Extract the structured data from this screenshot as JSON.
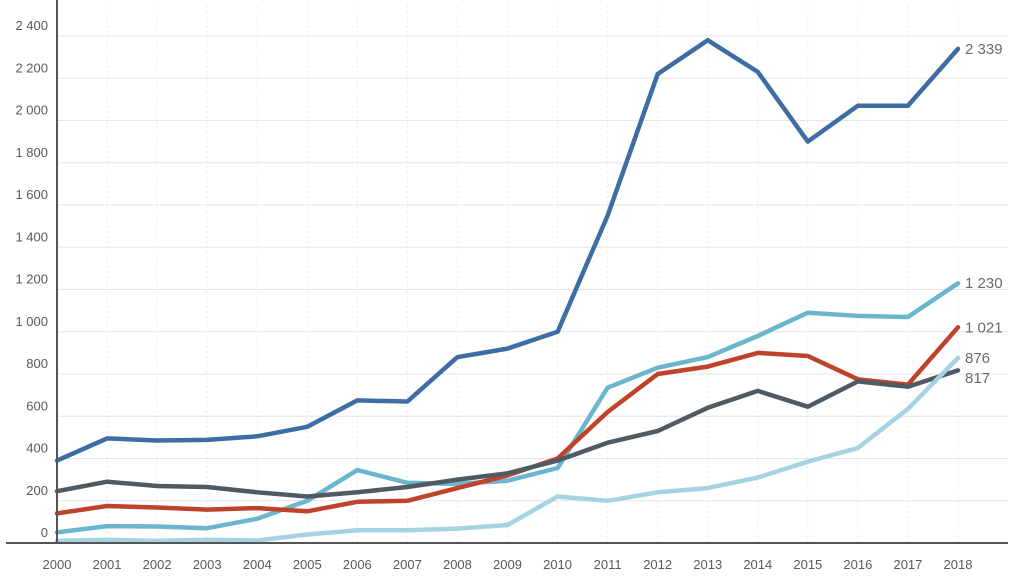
{
  "chart_data": {
    "type": "line",
    "x": [
      "2000",
      "2001",
      "2002",
      "2003",
      "2004",
      "2005",
      "2006",
      "2007",
      "2008",
      "2009",
      "2010",
      "2011",
      "2012",
      "2013",
      "2014",
      "2015",
      "2016",
      "2017",
      "2018"
    ],
    "y_ticks": [
      "0",
      "200",
      "400",
      "600",
      "800",
      "1 000",
      "1 200",
      "1 400",
      "1 600",
      "1 800",
      "2 000",
      "2 200",
      "2 400"
    ],
    "ylim": [
      0,
      2400
    ],
    "grid": true,
    "legend": "none",
    "series": [
      {
        "color": "#3d6da3",
        "values": [
          390,
          495,
          485,
          488,
          505,
          550,
          675,
          670,
          880,
          920,
          1000,
          1550,
          2220,
          2380,
          2230,
          1900,
          2070,
          2070,
          2339
        ],
        "end_label": "2 339"
      },
      {
        "color": "#6bb6cc",
        "values": [
          50,
          80,
          78,
          70,
          115,
          200,
          345,
          285,
          280,
          295,
          355,
          735,
          830,
          880,
          980,
          1090,
          1075,
          1070,
          1230
        ],
        "end_label": "1 230"
      },
      {
        "color": "#c0412c",
        "values": [
          140,
          175,
          168,
          158,
          165,
          150,
          195,
          200,
          260,
          320,
          400,
          620,
          800,
          835,
          900,
          885,
          775,
          750,
          1021
        ],
        "end_label": "1 021"
      },
      {
        "color": "#505a63",
        "values": [
          245,
          290,
          270,
          265,
          240,
          220,
          240,
          265,
          300,
          330,
          390,
          475,
          530,
          640,
          720,
          645,
          765,
          740,
          817
        ],
        "end_label": "817"
      },
      {
        "color": "#a6d3e1",
        "values": [
          10,
          15,
          10,
          15,
          12,
          40,
          60,
          60,
          68,
          85,
          220,
          200,
          240,
          260,
          310,
          385,
          450,
          635,
          876
        ],
        "end_label": "876"
      }
    ]
  }
}
